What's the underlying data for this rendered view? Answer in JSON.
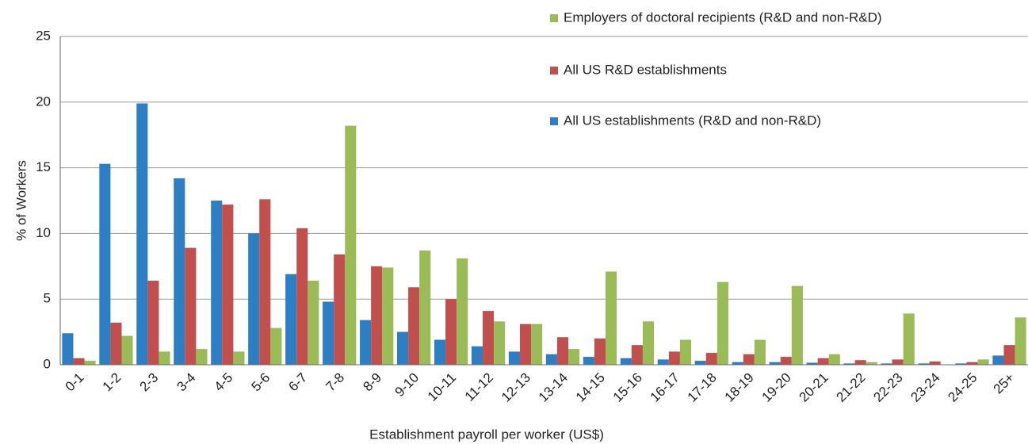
{
  "chart_data": {
    "type": "bar",
    "x_label": "Establishment payroll per worker (US$)",
    "y_label": "% of Workers",
    "categories": [
      "0-1",
      "1-2",
      "2-3",
      "3-4",
      "4-5",
      "5-6",
      "6-7",
      "7-8",
      "8-9",
      "9-10",
      "10-11",
      "11-12",
      "12-13",
      "13-14",
      "14-15",
      "15-16",
      "16-17",
      "17-18",
      "18-19",
      "19-20",
      "20-21",
      "21-22",
      "22-23",
      "23-24",
      "24-25",
      "25+"
    ],
    "series": [
      {
        "name": "All US establishments  (R&D and non-R&D)",
        "color": "#2e7ec4",
        "values": [
          2.4,
          15.3,
          19.9,
          14.2,
          12.5,
          10.0,
          6.9,
          4.8,
          3.4,
          2.5,
          1.9,
          1.4,
          1.0,
          0.8,
          0.6,
          0.5,
          0.4,
          0.3,
          0.2,
          0.2,
          0.15,
          0.1,
          0.1,
          0.1,
          0.1,
          0.7
        ]
      },
      {
        "name": "All US R&D establishments",
        "color": "#c0504d",
        "values": [
          0.5,
          3.2,
          6.4,
          8.9,
          12.2,
          12.6,
          10.4,
          8.4,
          7.5,
          5.9,
          5.0,
          4.1,
          3.1,
          2.1,
          2.0,
          1.5,
          1.0,
          0.9,
          0.8,
          0.6,
          0.5,
          0.35,
          0.4,
          0.25,
          0.2,
          1.5
        ]
      },
      {
        "name": "Employers of doctoral recipients (R&D and non-R&D)",
        "color": "#9bbb59",
        "values": [
          0.3,
          2.2,
          1.0,
          1.2,
          1.0,
          2.8,
          6.4,
          18.2,
          7.4,
          8.7,
          8.1,
          3.3,
          3.1,
          1.2,
          7.1,
          3.3,
          1.9,
          6.3,
          1.9,
          6.0,
          0.8,
          0.2,
          3.9,
          0,
          0.4,
          3.6
        ]
      }
    ],
    "ylim": [
      0,
      25
    ],
    "yticks": [
      0,
      5,
      10,
      15,
      20,
      25
    ],
    "grid": true
  }
}
